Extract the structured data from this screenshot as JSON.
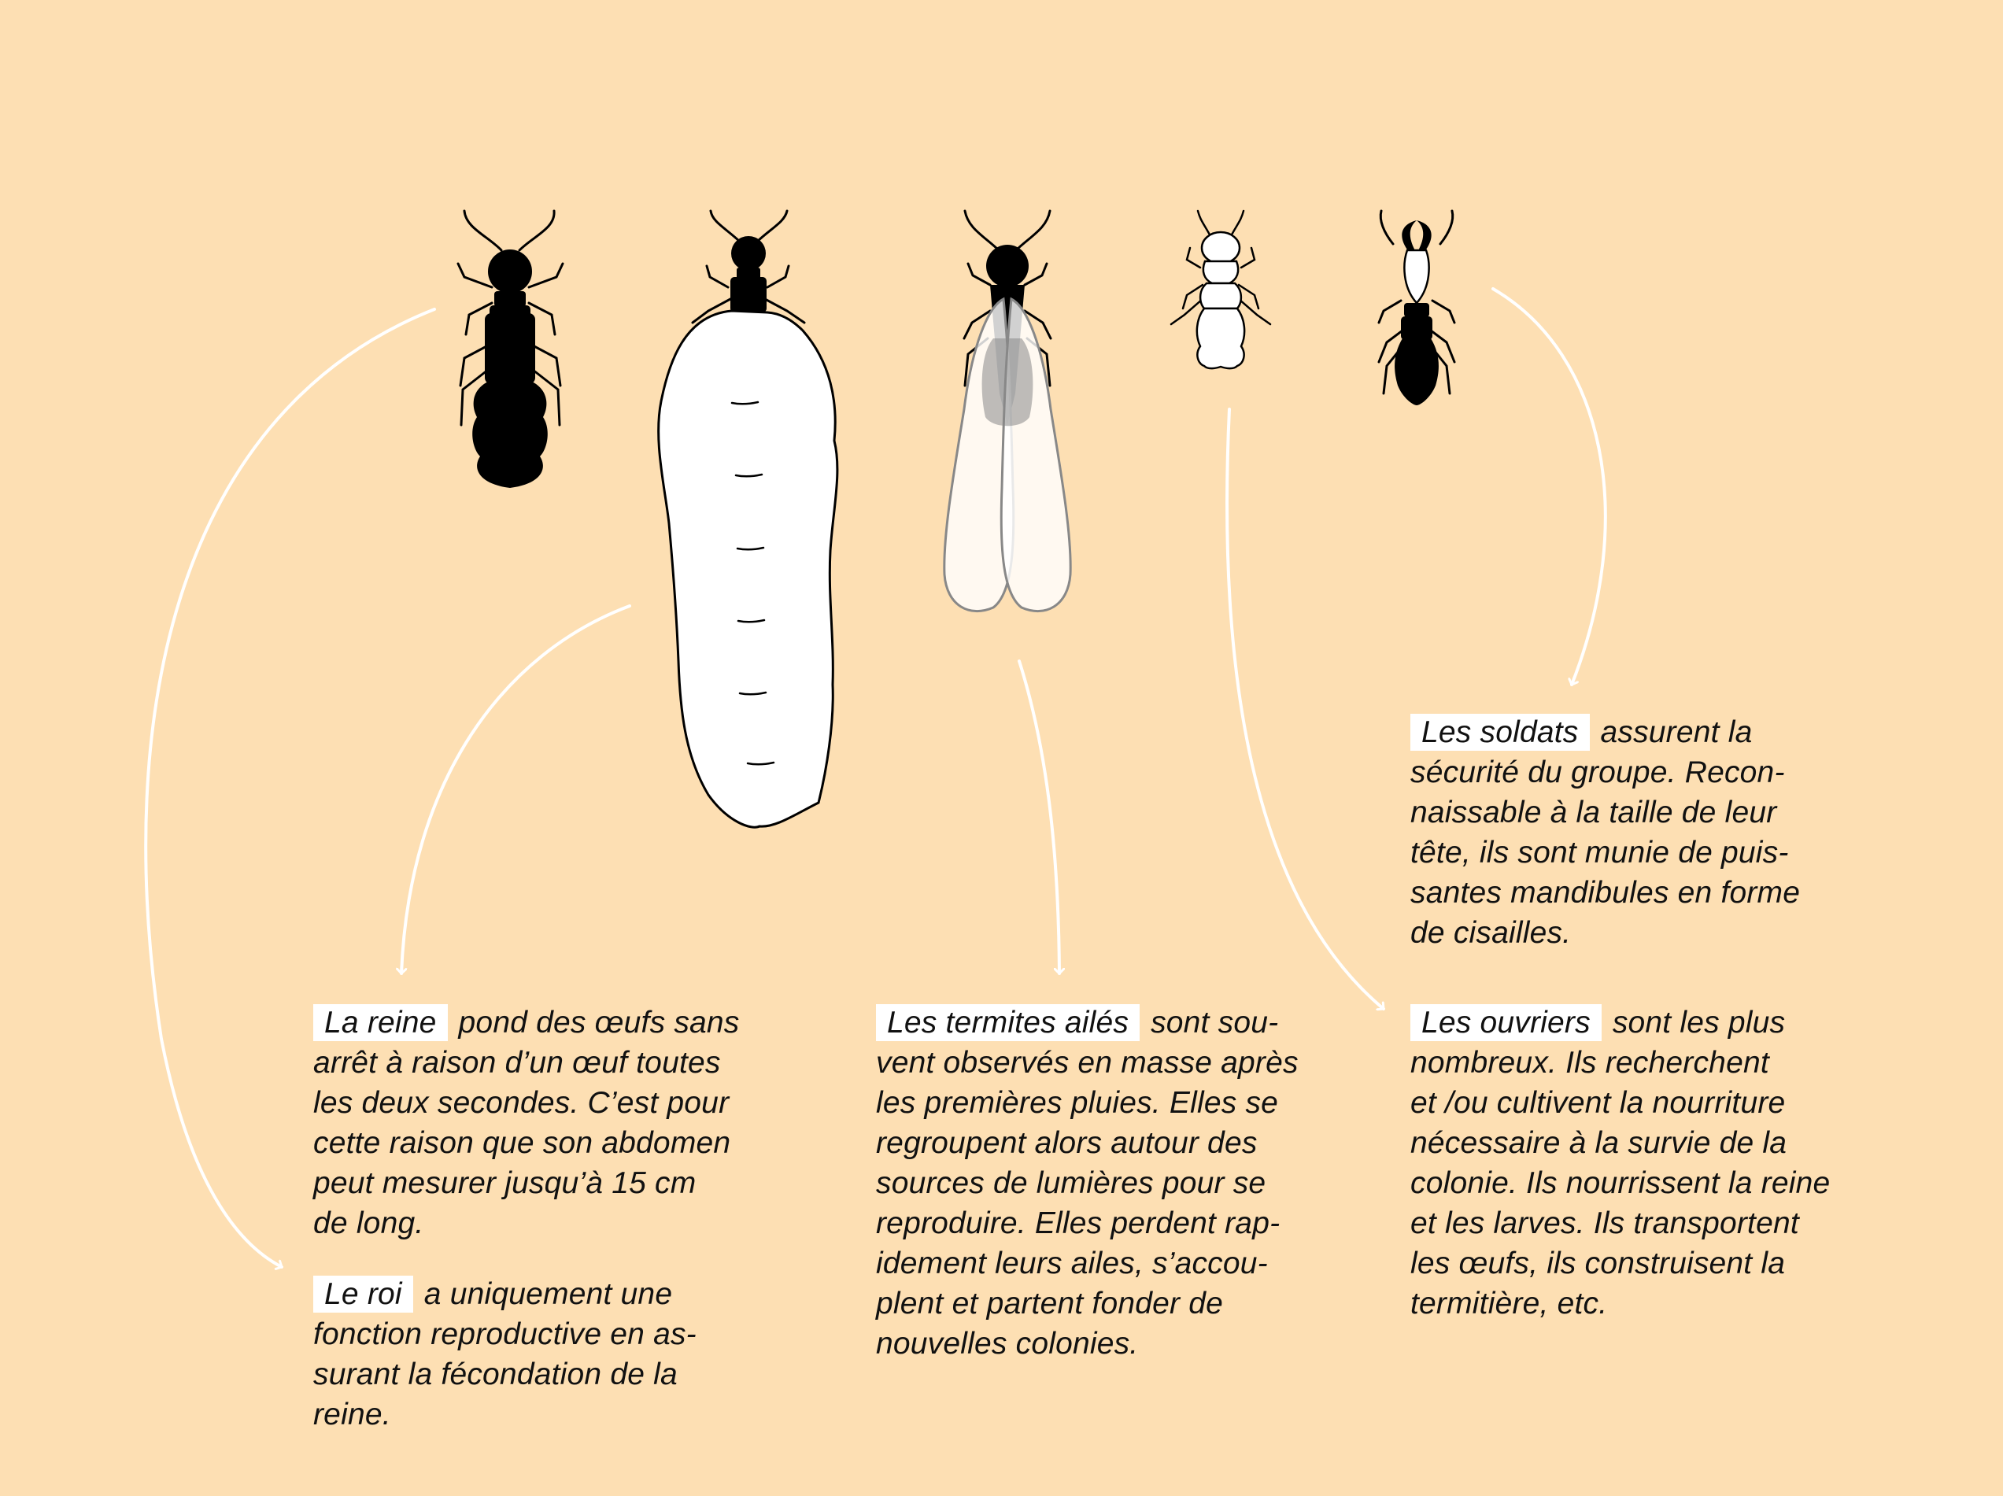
{
  "colors": {
    "background": "#FDDFB3",
    "insect": "#000000",
    "queen_abdomen": "#FFFFFF",
    "wing_edge": "#888888",
    "arrow": "#FFFFFF",
    "label_highlight": "#FFFFFF"
  },
  "illustrations": [
    "king-icon",
    "queen-icon",
    "winged-termite-icon",
    "worker-icon",
    "soldier-icon"
  ],
  "captions": {
    "reine": {
      "label": "La reine",
      "text": "pond des œufs sans\narrêt à raison d’un œuf toutes\nles deux secondes. C’est pour\ncette raison que son abdomen\npeut mesurer  jusqu’à 15 cm\nde long."
    },
    "roi": {
      "label": "Le roi",
      "text": "a uniquement une\nfonction reproductive en as-\nsurant la fécondation de la\nreine."
    },
    "ailes": {
      "label": "Les termites ailés",
      "text": "sont sou-\nvent observés en masse après\nles premières pluies. Elles se\nregroupent alors autour des\nsources de lumières pour se\nreproduire. Elles perdent rap-\nidement leurs ailes, s’accou-\nplent et partent fonder de\nnouvelles colonies."
    },
    "soldats": {
      "label": "Les soldats",
      "text": "assurent la\nsécurité du groupe. Recon-\nnaissable à la taille de leur\ntête, ils sont munie de puis-\nsantes mandibules en forme\nde cisailles."
    },
    "ouvriers": {
      "label": "Les ouvriers",
      "text": "sont les plus\nnombreux. Ils recherchent\net /ou cultivent la nourriture\nnécessaire à la survie de la\ncolonie. Ils nourrissent la reine\net les larves. Ils transportent\nles œufs, ils construisent la\ntermitière, etc."
    }
  }
}
